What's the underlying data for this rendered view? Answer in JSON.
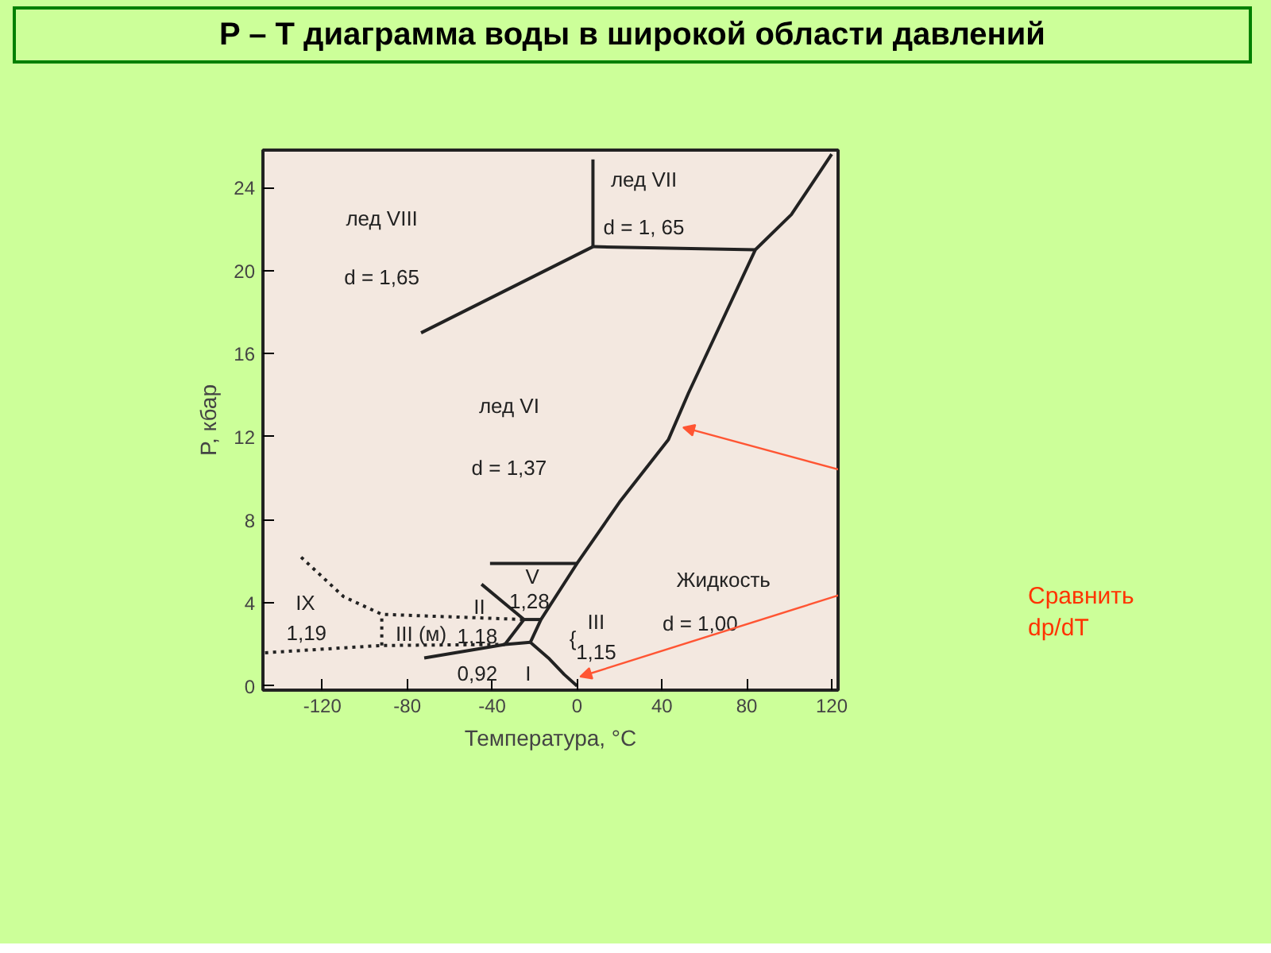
{
  "chart_data": {
    "type": "line",
    "title": "P – T диаграмма воды в широкой области давлений",
    "xlabel": "Температура, °C",
    "ylabel": "P, кбар",
    "xlim": [
      -148,
      123
    ],
    "ylim": [
      -0.2,
      25.8
    ],
    "xticks": [
      -120,
      -80,
      -40,
      0,
      40,
      80,
      120
    ],
    "yticks": [
      0,
      4,
      8,
      12,
      16,
      20,
      24
    ],
    "marker": "none",
    "series": [
      {
        "color": "#222222",
        "line_style": "solid",
        "x": [
          0,
          -6,
          -13.5,
          -22
        ],
        "values": [
          0,
          0.55,
          1.35,
          2.1
        ]
      },
      {
        "color": "#222222",
        "line_style": "solid",
        "x": [
          -72,
          -34,
          -22
        ],
        "values": [
          1.35,
          2.0,
          2.1
        ]
      },
      {
        "color": "#222222",
        "line_style": "solid",
        "x": [
          -34,
          -25
        ],
        "values": [
          2.0,
          3.2
        ]
      },
      {
        "color": "#222222",
        "line_style": "solid",
        "x": [
          -25,
          -17
        ],
        "values": [
          3.2,
          3.2
        ]
      },
      {
        "color": "#222222",
        "line_style": "solid",
        "x": [
          -45,
          -25
        ],
        "values": [
          4.9,
          3.2
        ]
      },
      {
        "color": "#222222",
        "line_style": "solid",
        "x": [
          -22,
          -17,
          0,
          20,
          43,
          52.5,
          84,
          101,
          120
        ],
        "values": [
          2.1,
          3.2,
          5.9,
          8.85,
          11.85,
          14.1,
          21.0,
          22.7,
          25.6
        ]
      },
      {
        "color": "#222222",
        "line_style": "solid",
        "x": [
          -41,
          0
        ],
        "values": [
          5.9,
          5.9
        ]
      },
      {
        "color": "#222222",
        "line_style": "solid",
        "x": [
          -73.5,
          7.5
        ],
        "values": [
          17.0,
          21.15
        ]
      },
      {
        "color": "#222222",
        "line_style": "solid",
        "x": [
          7.5,
          7.5
        ],
        "values": [
          21.15,
          25.35
        ]
      },
      {
        "color": "#222222",
        "line_style": "solid",
        "x": [
          7.5,
          84
        ],
        "values": [
          21.15,
          21.0
        ]
      },
      {
        "color": "#222222",
        "line_style": "dotted",
        "x": [
          -130,
          -110,
          -92,
          -25
        ],
        "values": [
          6.2,
          4.3,
          3.45,
          3.2
        ]
      },
      {
        "color": "#222222",
        "line_style": "dotted",
        "x": [
          -147,
          -92,
          -34
        ],
        "values": [
          1.6,
          1.95,
          2.0
        ]
      },
      {
        "color": "#222222",
        "line_style": "dotted",
        "x": [
          -92,
          -92
        ],
        "values": [
          1.95,
          3.45
        ]
      }
    ],
    "annotations": [
      "лед VIII",
      "d = 1,65",
      "лед VII",
      "d = 1, 65",
      "лед VI",
      "d = 1,37",
      "V",
      "1,28",
      "II",
      "IX",
      "1,19",
      "III (м)",
      "1,18",
      "{",
      "III",
      "1,15",
      "Жидкость",
      "d = 1,00",
      "0,92",
      "I",
      "Сравнить dp/dT"
    ]
  }
}
